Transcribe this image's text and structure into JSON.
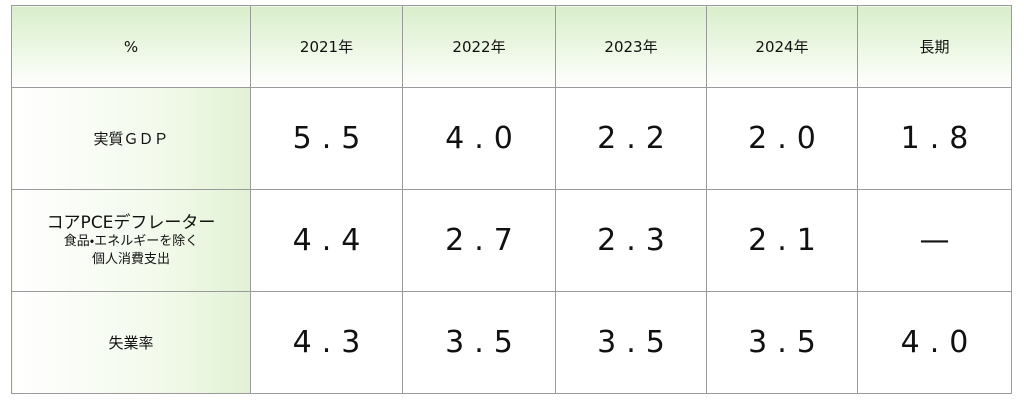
{
  "table": {
    "header": [
      "%",
      "2021年",
      "2022年",
      "2023年",
      "2024年",
      "長期"
    ],
    "rows": [
      {
        "label": [
          "実質ＧＤＰ"
        ],
        "values": [
          "5.5",
          "4.0",
          "2.2",
          "2.0",
          "1.8"
        ]
      },
      {
        "label": [
          "コアPCEデフレーター",
          "食品・エネルギーを除く",
          "個人消費支出"
        ],
        "values": [
          "4.4",
          "2.7",
          "2.3",
          "2.1",
          "—"
        ]
      },
      {
        "label": [
          "失業率"
        ],
        "values": [
          "4.3",
          "3.5",
          "3.5",
          "3.5",
          "4.0"
        ]
      }
    ]
  }
}
